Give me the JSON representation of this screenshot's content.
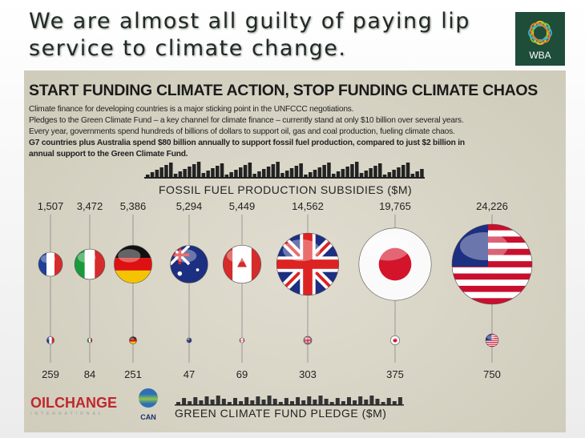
{
  "slide": {
    "title_line1": "We are almost all guilty of paying lip",
    "title_line2": "service to climate change.",
    "logo_text": "WBA"
  },
  "infographic": {
    "headline": "START FUNDING CLIMATE ACTION, STOP FUNDING CLIMATE CHAOS",
    "paragraphs": [
      "Climate finance for developing countries is a major sticking point in the UNFCCC negotiations.",
      "Pledges to the Green Climate Fund – a key channel for climate finance – currently stand at only $10 billion over several years.",
      "Every year, governments spend hundreds of billions of dollars to support oil, gas and coal production, fueling climate chaos."
    ],
    "bold_line1": "G7 countries plus Australia spend $80 billion annually to support fossil fuel production, compared to just $2 billion in",
    "bold_line2": "annual support to the Green Climate Fund.",
    "logos": {
      "oilchange": "OILCHANGE",
      "oilchange_sub": "INTERNATIONAL",
      "can": "CAN"
    }
  },
  "chart_data": {
    "type": "bubble",
    "top_label": "FOSSIL FUEL PRODUCTION SUBSIDIES ($M)",
    "bottom_label": "GREEN CLIMATE FUND PLEDGE ($M)",
    "flags": [
      "flag-france",
      "flag-italy",
      "flag-germany",
      "flag-australia",
      "flag-canada",
      "flag-uk",
      "flag-japan",
      "flag-usa"
    ],
    "fossil_subsidies": [
      "1,507",
      "3,472",
      "5,386",
      "5,294",
      "5,449",
      "14,562",
      "19,765",
      "24,226"
    ],
    "gcf_pledges": [
      "259",
      "84",
      "251",
      "47",
      "69",
      "303",
      "375",
      "750"
    ]
  }
}
